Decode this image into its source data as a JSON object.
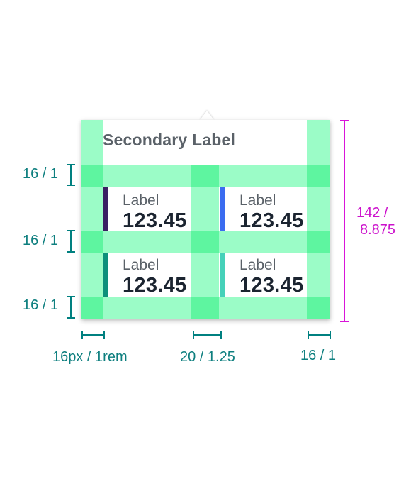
{
  "tooltip": {
    "secondary_label": "Secondary Label",
    "items": [
      {
        "label": "Label",
        "value": "123.45",
        "color": "#3b1f63"
      },
      {
        "label": "Label",
        "value": "123.45",
        "color": "#3b6cf0"
      },
      {
        "label": "Label",
        "value": "123.45",
        "color": "#0e8f7b"
      },
      {
        "label": "Label",
        "value": "123.45",
        "color": "#46d1b9"
      }
    ]
  },
  "annotations": {
    "row_gap_1": "16 / 1",
    "row_gap_2": "16 / 1",
    "row_gap_3": "16 / 1",
    "left_padding": "16px / 1rem",
    "column_gap": "20 / 1.25",
    "right_padding": "16 / 1",
    "height_px": "142 /",
    "height_rem": "8.875"
  },
  "colors": {
    "padding_overlay": "#9bfcc7",
    "padding_intersection": "#5ef5a0",
    "measure_teal": "#008080",
    "measure_magenta": "#d915d9"
  }
}
